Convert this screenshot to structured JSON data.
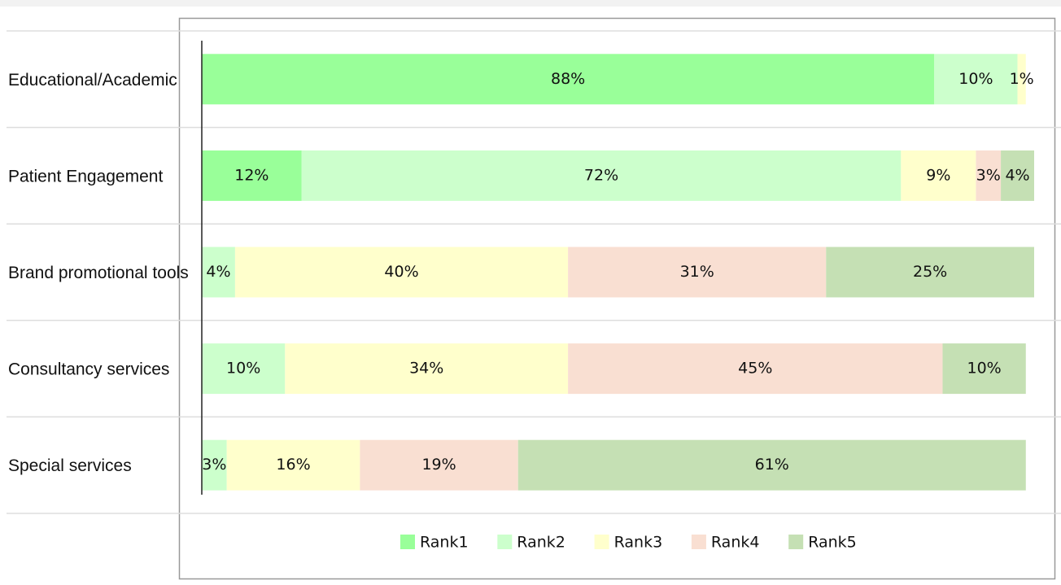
{
  "chart_data": {
    "type": "stacked-barh",
    "categories": [
      "Educational/Academic",
      "Patient Engagement",
      "Brand promotional tools",
      "Consultancy services",
      "Special services"
    ],
    "xlim": [
      0,
      100
    ],
    "legend": "bottom",
    "series": [
      {
        "name": "Rank1",
        "color": "#99ff99",
        "values": [
          88,
          12,
          null,
          null,
          null
        ],
        "value_labels": [
          "88%",
          "12%",
          null,
          null,
          null
        ]
      },
      {
        "name": "Rank2",
        "color": "#ccffcc",
        "values": [
          10,
          72,
          4,
          10,
          3
        ],
        "value_labels": [
          "10%",
          "72%",
          "4%",
          "10%",
          "3%"
        ]
      },
      {
        "name": "Rank3",
        "color": "#ffffcc",
        "values": [
          1,
          9,
          40,
          34,
          16
        ],
        "value_labels": [
          "1%",
          "9%",
          "40%",
          "34%",
          "16%"
        ]
      },
      {
        "name": "Rank4",
        "color": "#f9dfd2",
        "values": [
          null,
          3,
          31,
          45,
          19
        ],
        "value_labels": [
          null,
          "3%",
          "31%",
          "45%",
          "19%"
        ]
      },
      {
        "name": "Rank5",
        "color": "#c5e0b4",
        "values": [
          null,
          4,
          25,
          10,
          61
        ],
        "value_labels": [
          null,
          "4%",
          "25%",
          "10%",
          "61%"
        ]
      }
    ]
  }
}
